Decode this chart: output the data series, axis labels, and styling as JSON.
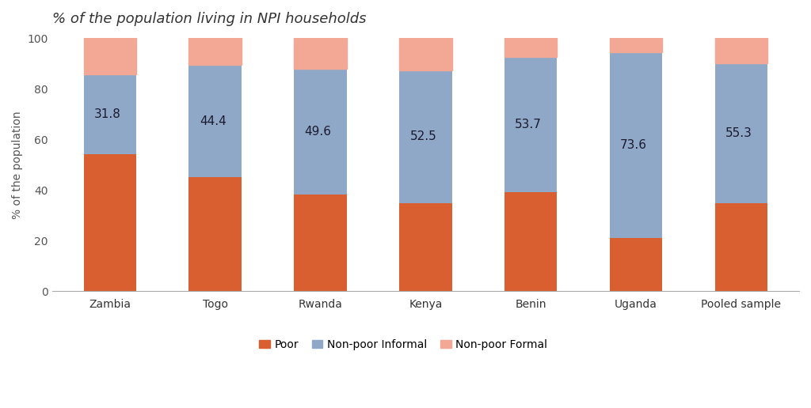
{
  "categories": [
    "Zambia",
    "Togo",
    "Rwanda",
    "Kenya",
    "Benin",
    "Uganda",
    "Pooled sample"
  ],
  "poor": [
    54.0,
    45.0,
    38.2,
    34.8,
    39.0,
    21.0,
    34.9
  ],
  "non_poor_informal": [
    31.8,
    44.4,
    49.6,
    52.5,
    53.7,
    73.6,
    55.3
  ],
  "non_poor_formal": [
    14.2,
    10.6,
    12.2,
    12.7,
    7.3,
    5.4,
    9.8
  ],
  "npi_labels": [
    "31.8",
    "44.4",
    "49.6",
    "52.5",
    "53.7",
    "73.6",
    "55.3"
  ],
  "color_poor": "#D95F30",
  "color_npi": "#8FA8C8",
  "color_npf": "#F2A894",
  "title": "% of the population living in NPI households",
  "ylabel": "% of the population",
  "ylim": [
    0,
    100
  ],
  "yticks": [
    0,
    20,
    40,
    60,
    80,
    100
  ],
  "legend_labels": [
    "Poor",
    "Non-poor Informal",
    "Non-poor Formal"
  ],
  "bar_width": 0.5,
  "label_fontsize": 11,
  "title_fontsize": 13,
  "tick_fontsize": 10,
  "ylabel_fontsize": 10,
  "legend_fontsize": 10,
  "source_fontsize": 9
}
